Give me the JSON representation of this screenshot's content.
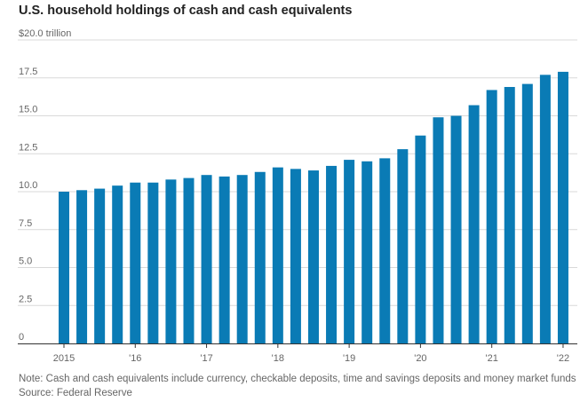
{
  "chart_data": {
    "type": "bar",
    "title": "U.S. household holdings of cash and cash equivalents",
    "ylabel": "",
    "xlabel": "",
    "y_unit_label": "$20.0 trillion",
    "ylim": [
      0,
      20
    ],
    "y_ticks": [
      0,
      2.5,
      5.0,
      7.5,
      10.0,
      12.5,
      15.0,
      17.5,
      20.0
    ],
    "y_tick_labels": [
      "0",
      "2.5",
      "5.0",
      "7.5",
      "10.0",
      "12.5",
      "15.0",
      "17.5",
      "$20.0 trillion"
    ],
    "x_tick_labels": [
      "2015",
      "'16",
      "'17",
      "'18",
      "'19",
      "'20",
      "'21",
      "'22"
    ],
    "x_tick_bar_index": [
      0,
      4,
      8,
      12,
      16,
      20,
      24,
      28
    ],
    "categories": [
      "2015 Q1",
      "2015 Q2",
      "2015 Q3",
      "2015 Q4",
      "2016 Q1",
      "2016 Q2",
      "2016 Q3",
      "2016 Q4",
      "2017 Q1",
      "2017 Q2",
      "2017 Q3",
      "2017 Q4",
      "2018 Q1",
      "2018 Q2",
      "2018 Q3",
      "2018 Q4",
      "2019 Q1",
      "2019 Q2",
      "2019 Q3",
      "2019 Q4",
      "2020 Q1",
      "2020 Q2",
      "2020 Q3",
      "2020 Q4",
      "2021 Q1",
      "2021 Q2",
      "2021 Q3",
      "2021 Q4",
      "2022 Q1"
    ],
    "values": [
      10.0,
      10.1,
      10.2,
      10.4,
      10.6,
      10.6,
      10.8,
      10.9,
      11.1,
      11.0,
      11.1,
      11.3,
      11.6,
      11.5,
      11.4,
      11.7,
      12.1,
      12.0,
      12.2,
      12.8,
      13.7,
      14.9,
      15.0,
      15.7,
      16.7,
      16.9,
      17.1,
      17.7,
      17.9
    ],
    "bar_color": "#0a7bb5",
    "grid": true,
    "legend": "none"
  },
  "footer": {
    "note": "Note: Cash and cash equivalents include currency, checkable deposits, time and savings deposits and money market funds",
    "source": "Source: Federal Reserve"
  }
}
